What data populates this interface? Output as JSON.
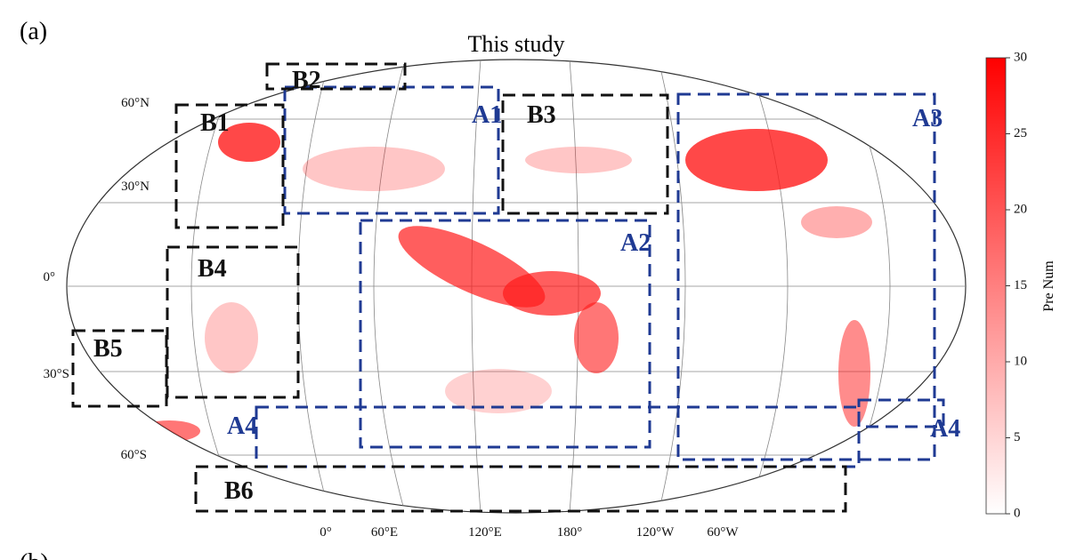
{
  "panel_label": "(a)",
  "next_panel_label": "(b)",
  "title": "This study",
  "lat_labels": [
    "60°N",
    "30°N",
    "0°",
    "30°S",
    "60°S"
  ],
  "lon_labels": [
    "0°",
    "60°E",
    "120°E",
    "180°",
    "120°W",
    "60°W"
  ],
  "region_groups": [
    {
      "color": "#1f3a93",
      "labels": [
        "A1",
        "A2",
        "A3",
        "A4",
        "A4"
      ]
    },
    {
      "color": "#111111",
      "labels": [
        "B1",
        "B2",
        "B3",
        "B4",
        "B5",
        "B6"
      ]
    }
  ],
  "colorbar": {
    "label": "Pre Num",
    "lim": [
      0,
      30
    ],
    "ticks": [
      0,
      5,
      10,
      15,
      20,
      25,
      30
    ],
    "color": "#ff0000"
  }
}
